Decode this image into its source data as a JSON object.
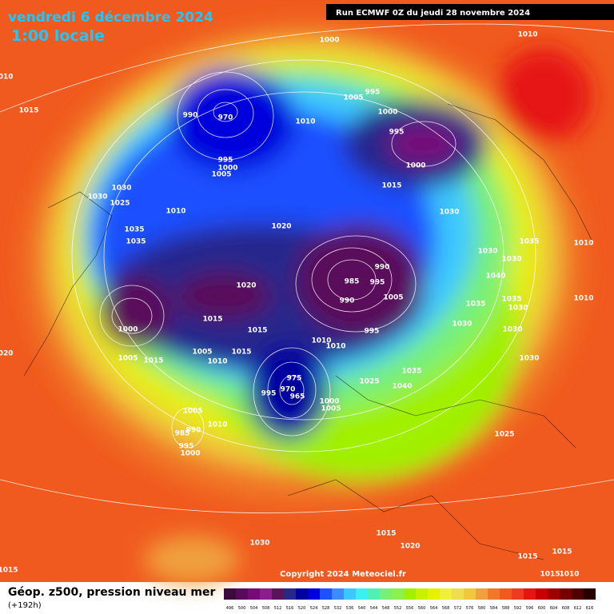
{
  "header": {
    "date": "vendredi 6 décembre 2024",
    "time": "1:00 locale",
    "run": "Run ECMWF 0Z du jeudi 28 novembre 2024"
  },
  "copyright": "Copyright 2024 Meteociel.fr",
  "legend": {
    "title": "Géop. z500, pression niveau mer",
    "lead": "(+192h)",
    "levels": [
      496,
      500,
      504,
      508,
      512,
      516,
      520,
      524,
      528,
      532,
      536,
      540,
      544,
      548,
      552,
      556,
      560,
      564,
      568,
      572,
      576,
      580,
      584,
      588,
      592,
      596,
      600,
      604,
      608,
      612,
      616
    ],
    "colors": [
      "#3c0a3c",
      "#5a0a5a",
      "#780a78",
      "#8c1e8c",
      "#5a145a",
      "#28288c",
      "#0000a0",
      "#0000dc",
      "#1e50ff",
      "#3c8cff",
      "#3cc8ff",
      "#3cf0f0",
      "#50f0b4",
      "#78f078",
      "#8cf050",
      "#a0f000",
      "#c8f000",
      "#e6f000",
      "#f0f03c",
      "#f0dc50",
      "#f0c83c",
      "#f0a03c",
      "#f07828",
      "#f05a1e",
      "#f03c1e",
      "#e61414",
      "#c80000",
      "#a00000",
      "#780000",
      "#500000",
      "#280000"
    ]
  },
  "isobar_labels": [
    "1000",
    "1010",
    "1010",
    "1015",
    "995",
    "1005",
    "1000",
    "995",
    "1010",
    "990",
    "970",
    "1000",
    "995",
    "1000",
    "1005",
    "1030",
    "1030",
    "1025",
    "1010",
    "1015",
    "1030",
    "1020",
    "1035",
    "1035",
    "1035",
    "1010",
    "1030",
    "1030",
    "990",
    "1040",
    "985",
    "995",
    "1020",
    "1005",
    "990",
    "1035",
    "1035",
    "1030",
    "1010",
    "1015",
    "1000",
    "1015",
    "995",
    "1030",
    "1030",
    "1010",
    "1010",
    "1005",
    "1015",
    "1010",
    "1005",
    "1015",
    "1030",
    "1035",
    "975",
    "1025",
    "1040",
    "995",
    "970",
    "965",
    "1000",
    "1005",
    "1005",
    "1010",
    "990",
    "985",
    "995",
    "1000",
    "1025",
    "1015",
    "1020",
    "1030",
    "1015",
    "1015",
    "1015",
    "1015",
    "1010",
    "1020"
  ]
}
